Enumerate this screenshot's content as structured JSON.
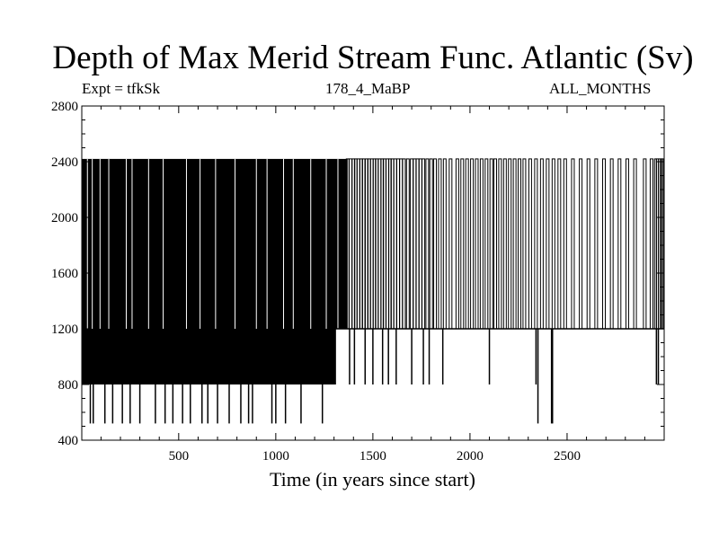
{
  "chart_data": {
    "type": "line",
    "title": "Depth of Max Merid Stream Func. Atlantic (Sv)",
    "subtitle": "178_4_MaBP",
    "experiment_label": "Expt = tfkSk",
    "period_label": "ALL_MONTHS",
    "xlabel": "Time (in years since start)",
    "ylabel": "",
    "xlim": [
      1,
      3000
    ],
    "ylim": [
      400,
      2800
    ],
    "xticks": [
      500,
      1000,
      1500,
      2000,
      2500
    ],
    "yticks": [
      400,
      800,
      1200,
      1600,
      2000,
      2400,
      2800
    ],
    "grid": false,
    "line_color": "#000000",
    "depth_levels": [
      520,
      800,
      1200,
      2420
    ],
    "series": [
      {
        "description_baseline": 1200,
        "spikes_to_2420_years": [
          1370,
          1385,
          1400,
          1412,
          1425,
          1440,
          1452,
          1468,
          1480,
          1495,
          1508,
          1520,
          1535,
          1548,
          1560,
          1575,
          1588,
          1600,
          1615,
          1630,
          1645,
          1660,
          1680,
          1700,
          1715,
          1730,
          1745,
          1760,
          1780,
          1800,
          1820,
          1845,
          1870,
          1900,
          1935,
          1960,
          1985,
          2010,
          2035,
          2060,
          2085,
          2110,
          2130,
          2155,
          2180,
          2205,
          2230,
          2255,
          2280,
          2310,
          2340,
          2370,
          2400,
          2430,
          2460,
          2490,
          2530,
          2570,
          2610,
          2650,
          2690,
          2730,
          2770,
          2810,
          2850,
          2900,
          2935,
          2955,
          2965,
          2975,
          2985,
          2992
        ],
        "dips_to_800_years": [
          1380,
          1405,
          1460,
          1500,
          1550,
          1580,
          1620,
          1700,
          1760,
          1790,
          1860,
          2100,
          2340,
          2960,
          2970
        ],
        "dips_to_520_years": [
          1240,
          1130,
          1050,
          1000,
          980,
          880,
          860,
          820,
          760,
          700,
          650,
          620,
          560,
          520,
          470,
          430,
          380,
          300,
          250,
          210,
          160,
          120,
          60,
          45,
          2350,
          2420,
          2425
        ]
      }
    ]
  }
}
